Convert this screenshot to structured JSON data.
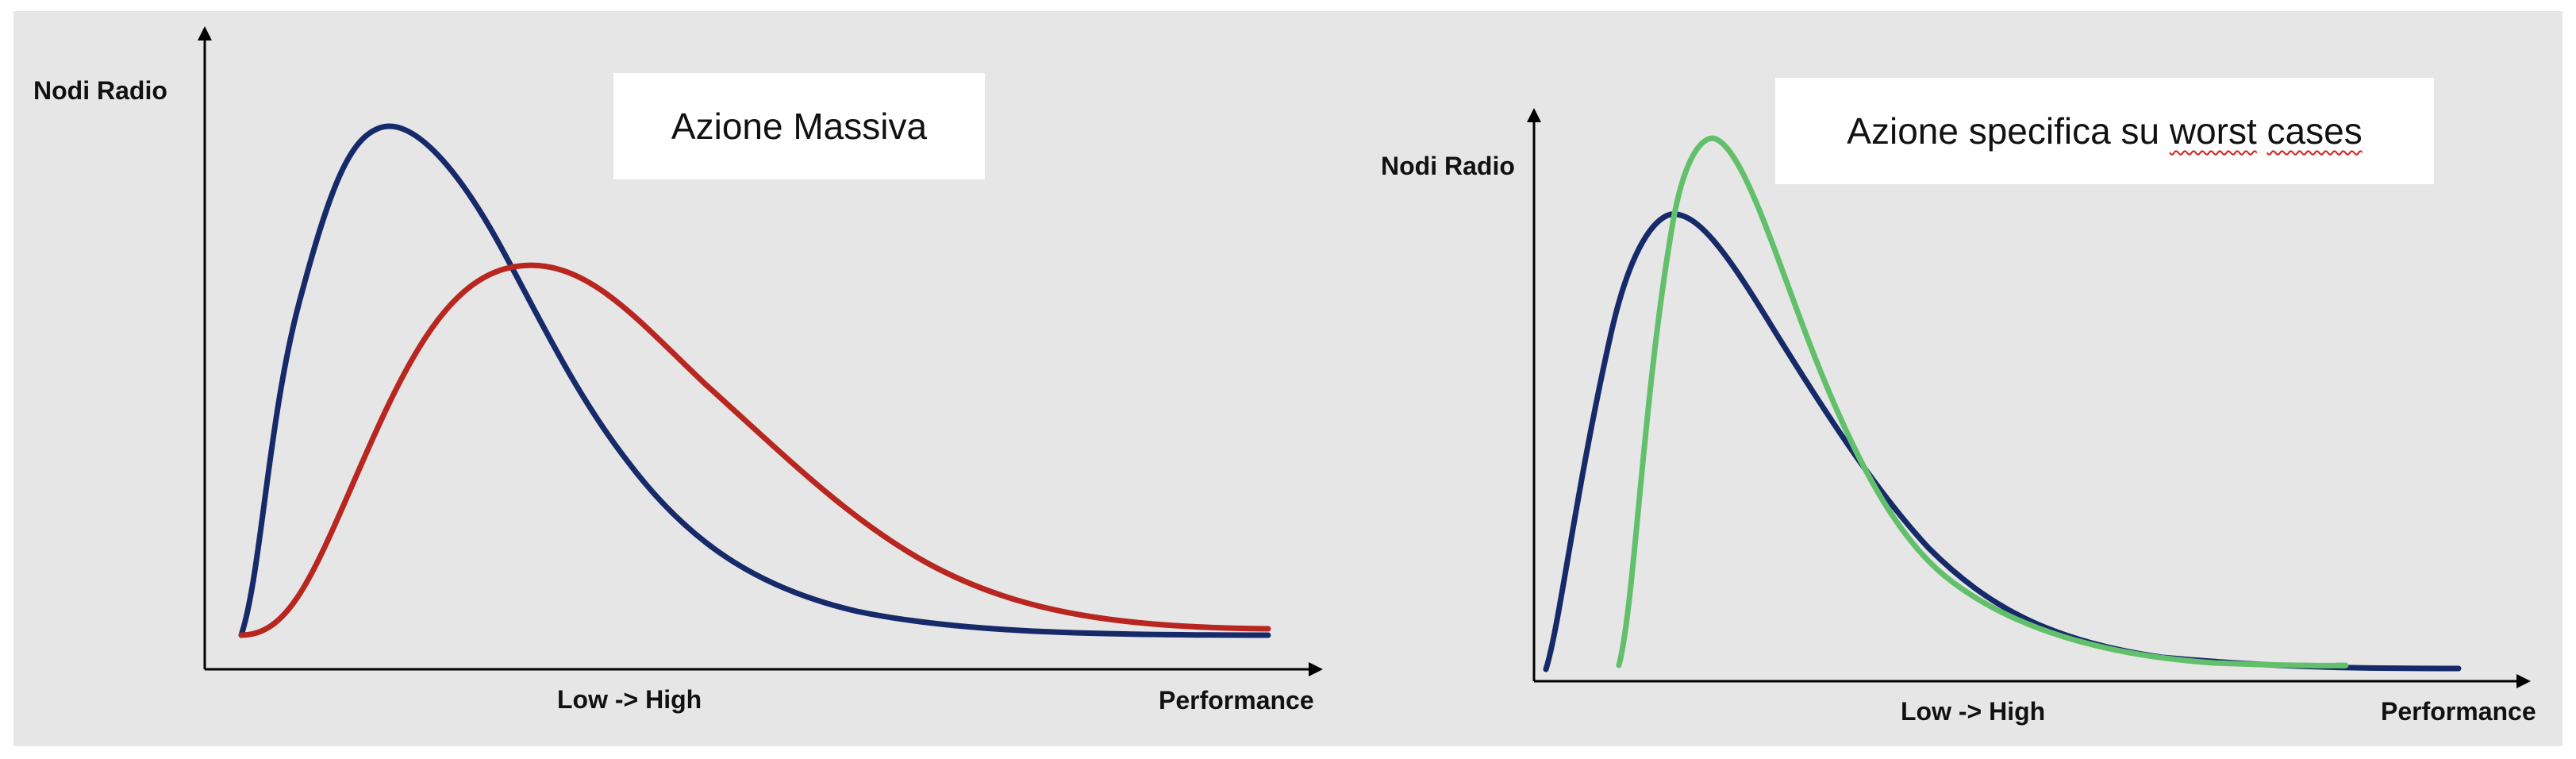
{
  "left_chart": {
    "y_axis_label": "Nodi Radio",
    "x_center_label": "Low -> High",
    "x_axis_label": "Performance",
    "box_title": "Azione Massiva",
    "curves": [
      {
        "color": "#162a6a"
      },
      {
        "color": "#b8261f"
      }
    ]
  },
  "right_chart": {
    "y_axis_label": "Nodi Radio",
    "x_center_label": "Low -> High",
    "x_axis_label": "Performance",
    "box_title": {
      "prefix": "Azione specifica su ",
      "word1": "worst",
      "space": " ",
      "word2": "cases"
    },
    "curves": [
      {
        "color": "#162a6a"
      },
      {
        "color": "#62c06b"
      }
    ]
  },
  "colors": {
    "background": "#e6e6e6",
    "axis": "#000000"
  }
}
